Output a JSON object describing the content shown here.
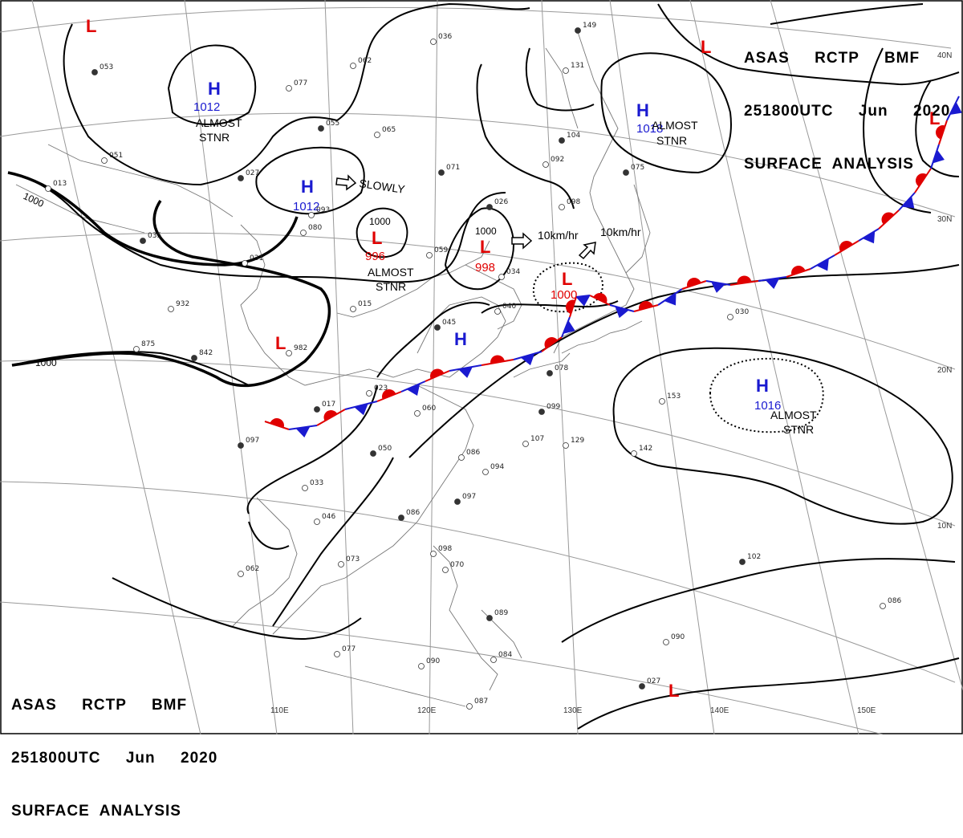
{
  "header": {
    "lines": [
      "ASAS     RCTP     BMF",
      "251800UTC     Jun     2020",
      "SURFACE  ANALYSIS"
    ]
  },
  "footer": {
    "lines": [
      "ASAS     RCTP     BMF",
      "251800UTC     Jun     2020",
      "SURFACE  ANALYSIS"
    ]
  },
  "colors": {
    "high": "#1a1ad0",
    "low": "#e00000",
    "cold_front": "#1a1ad0",
    "warm_front": "#e00000",
    "isobar": "#000000",
    "coast": "#888888",
    "grid": "#999999"
  },
  "grid_labels": {
    "longitudes": [
      "110E",
      "120E",
      "130E",
      "140E",
      "150E"
    ],
    "latitudes": [
      "40N",
      "30N",
      "20N",
      "10N"
    ]
  },
  "isobar_labels": [
    "1000",
    "1000",
    "1000",
    "1000",
    "1000"
  ],
  "pressure_centers": [
    {
      "type": "H",
      "value": "1012"
    },
    {
      "type": "H",
      "value": "1012"
    },
    {
      "type": "L",
      "value": "996"
    },
    {
      "type": "L",
      "value": "998"
    },
    {
      "type": "L",
      "value": "1000"
    },
    {
      "type": "H",
      "value": "1018"
    },
    {
      "type": "H",
      "value": "1016"
    },
    {
      "type": "H",
      "value": ""
    },
    {
      "type": "L",
      "value": ""
    },
    {
      "type": "L",
      "value": ""
    },
    {
      "type": "L",
      "value": ""
    },
    {
      "type": "L",
      "value": ""
    },
    {
      "type": "L",
      "value": ""
    }
  ],
  "annotations": [
    "ALMOST",
    "STNR",
    "ALMOST",
    "STNR",
    "ALMOST",
    "STNR",
    "ALMOST",
    "STNR",
    "SLOWLY",
    "10km/hr",
    "10km/hr"
  ],
  "stations": [
    "053",
    "062",
    "077",
    "055",
    "065",
    "036",
    "071",
    "051",
    "013",
    "027",
    "093",
    "080",
    "035",
    "031",
    "059",
    "026",
    "034",
    "040",
    "045",
    "015",
    "932",
    "842",
    "875",
    "982",
    "017",
    "023",
    "060",
    "050",
    "086",
    "094",
    "097",
    "033",
    "046",
    "086",
    "062",
    "073",
    "097",
    "077",
    "090",
    "099",
    "107",
    "129",
    "078",
    "153",
    "142",
    "104",
    "098",
    "092",
    "149",
    "131",
    "030",
    "102",
    "086",
    "090",
    "027",
    "098",
    "070",
    "089",
    "084",
    "087",
    "075"
  ]
}
